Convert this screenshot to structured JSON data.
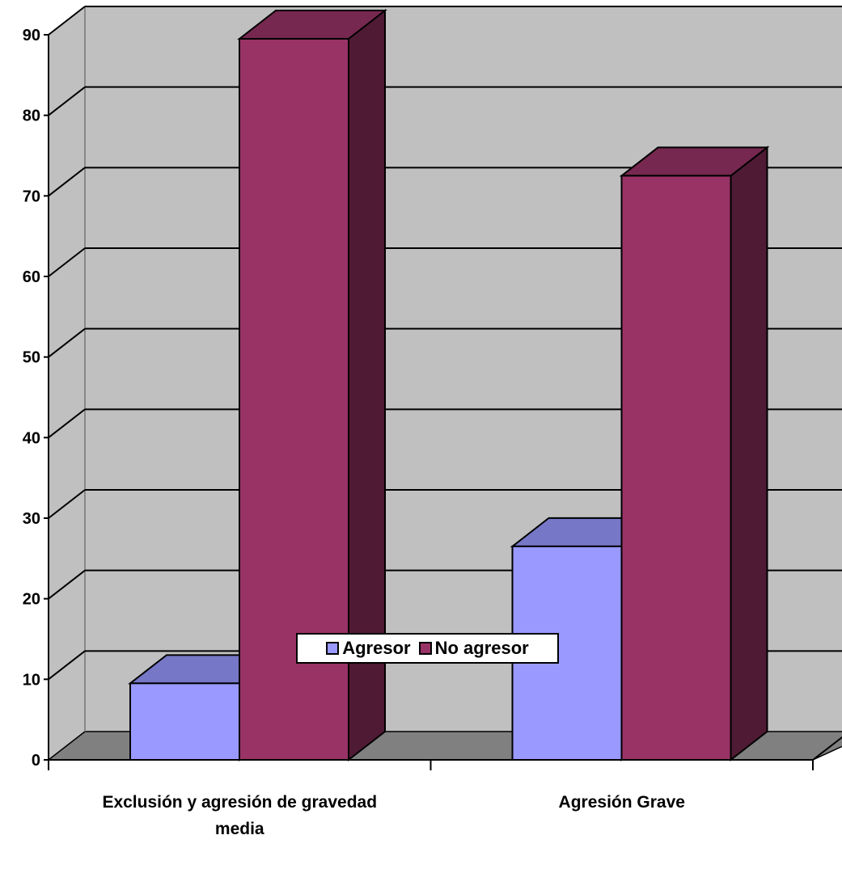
{
  "chart_data": {
    "type": "bar",
    "categories": [
      [
        "Exclusión y agresión de gravedad",
        "media"
      ],
      [
        "Agresión Grave"
      ]
    ],
    "series": [
      {
        "name": "Agresor",
        "values": [
          9.5,
          26.5
        ],
        "color": "#9999ff",
        "top_color": "#7777c8",
        "side_color": "#5a5ab0"
      },
      {
        "name": "No agresor",
        "values": [
          89.5,
          72.5
        ],
        "color": "#993366",
        "top_color": "#772850",
        "side_color": "#4f1a33"
      }
    ],
    "yticks": [
      "0",
      "10",
      "20",
      "30",
      "40",
      "50",
      "60",
      "70",
      "80",
      "90"
    ],
    "ylim": [
      0,
      90
    ],
    "grid": true,
    "legend_position": "bottom",
    "colors": {
      "wall": "#c0c0c0",
      "floor": "#808080"
    }
  }
}
